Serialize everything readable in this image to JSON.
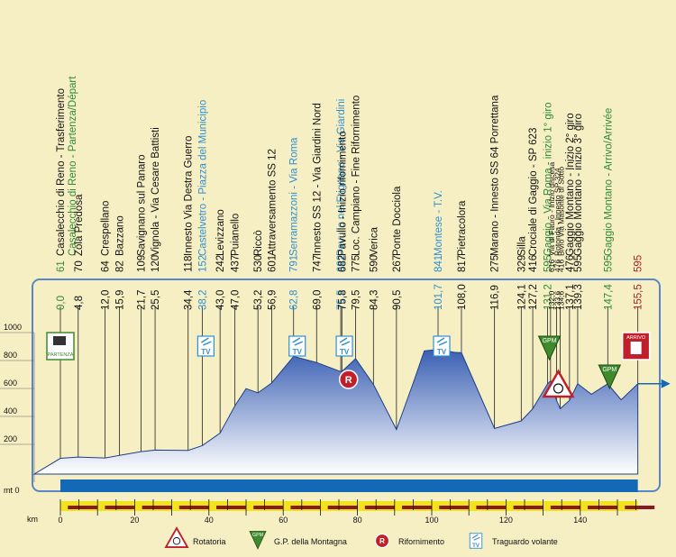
{
  "chart_data": {
    "type": "area",
    "title": "",
    "xlabel": "km",
    "ylabel": "",
    "xlim": [
      0,
      155.5
    ],
    "ylim": [
      0,
      1000
    ],
    "x_ticks": [
      0,
      20,
      40,
      60,
      80,
      100,
      120,
      140
    ],
    "y_ticks": [
      200,
      400,
      600,
      800,
      1000
    ],
    "y_base_label": "mt 0",
    "profile": [
      [
        0,
        61
      ],
      [
        4.8,
        70
      ],
      [
        12,
        64
      ],
      [
        15.9,
        82
      ],
      [
        21.7,
        109
      ],
      [
        25.5,
        120
      ],
      [
        34.4,
        118
      ],
      [
        38.2,
        152
      ],
      [
        43,
        242
      ],
      [
        47,
        437
      ],
      [
        50,
        560
      ],
      [
        53.2,
        530
      ],
      [
        56.9,
        601
      ],
      [
        62.8,
        791
      ],
      [
        69,
        747
      ],
      [
        75.5,
        682
      ],
      [
        75.8,
        682
      ],
      [
        79.5,
        775
      ],
      [
        84.3,
        590
      ],
      [
        90.5,
        267
      ],
      [
        95,
        600
      ],
      [
        98,
        830
      ],
      [
        101.7,
        841
      ],
      [
        106,
        820
      ],
      [
        108,
        817
      ],
      [
        116.9,
        275
      ],
      [
        124.1,
        329
      ],
      [
        127.2,
        416
      ],
      [
        131.2,
        595
      ],
      [
        132,
        616
      ],
      [
        133.6,
        476
      ],
      [
        134.6,
        416
      ],
      [
        137.1,
        476
      ],
      [
        139.3,
        595
      ],
      [
        143,
        520
      ],
      [
        147.4,
        595
      ],
      [
        151,
        480
      ],
      [
        155.5,
        595
      ]
    ],
    "places": [
      {
        "name": "Casalecchio di Reno - Trasferimento",
        "name2": "Casalecchio di Reno - Partenza/Départ",
        "km": "0,0",
        "alt": "61",
        "km_val": 0,
        "color": "green"
      },
      {
        "name": "Zola Predosa",
        "km": "4,8",
        "alt": "70",
        "km_val": 4.8
      },
      {
        "name": "Crespellano",
        "km": "12,0",
        "alt": "64",
        "km_val": 12
      },
      {
        "name": "Bazzano",
        "km": "15,9",
        "alt": "82",
        "km_val": 15.9
      },
      {
        "name": "Savignano sul Panaro",
        "km": "21,7",
        "alt": "109",
        "km_val": 21.7
      },
      {
        "name": "Vignola - Via Cesare Battisti",
        "km": "25,5",
        "alt": "120",
        "km_val": 25.5
      },
      {
        "name": "Innesto Via Destra Guerro",
        "km": "34,4",
        "alt": "118",
        "km_val": 34.4
      },
      {
        "name": "Castelvetro - Piazza del Municipio",
        "km": "38,2",
        "alt": "152",
        "km_val": 38.2,
        "color": "blue"
      },
      {
        "name": "Levizzano",
        "km": "43,0",
        "alt": "242",
        "km_val": 43
      },
      {
        "name": "Puianello",
        "km": "47,0",
        "alt": "437",
        "km_val": 47
      },
      {
        "name": "Riccò",
        "km": "53,2",
        "alt": "530",
        "km_val": 53.2
      },
      {
        "name": "Attraversamento SS 12",
        "km": "56,9",
        "alt": "601",
        "km_val": 56.9
      },
      {
        "name": "Serramazzoni - Via Roma",
        "km": "62,8",
        "alt": "791",
        "km_val": 62.8,
        "color": "blue"
      },
      {
        "name": "Innesto SS 12 - Via Giardini Nord",
        "km": "69,0",
        "alt": "747",
        "km_val": 69
      },
      {
        "name": "Pavullo nel Frignano - Via Giardini",
        "km": "75,5",
        "alt": "682",
        "km_val": 75.5,
        "color": "blue"
      },
      {
        "name": "Pavullo - Inizio rifornimento",
        "km": "75,8",
        "alt": "682",
        "km_val": 75.8
      },
      {
        "name": "Loc. Campiano - Fine Rifornimento",
        "km": "79,5",
        "alt": "775",
        "km_val": 79.5
      },
      {
        "name": "Verica",
        "km": "84,3",
        "alt": "590",
        "km_val": 84.3
      },
      {
        "name": "Ponte Docciola",
        "km": "90,5",
        "alt": "267",
        "km_val": 90.5
      },
      {
        "name": "Montese - T.V.",
        "km": "101,7",
        "alt": "841",
        "km_val": 101.7,
        "color": "blue"
      },
      {
        "name": "Pietracolora",
        "km": "108,0",
        "alt": "817",
        "km_val": 108
      },
      {
        "name": "Marano - Innesto SS 64 Porrettana",
        "km": "116,9",
        "alt": "275",
        "km_val": 116.9
      },
      {
        "name": "Silla",
        "km": "124,1",
        "alt": "329",
        "km_val": 124.1
      },
      {
        "name": "Crociale di Gaggio - SP 623",
        "km": "127,2",
        "alt": "416",
        "km_val": 127.2
      },
      {
        "name": "Gaggio - Via Roma - inizio 1° giro",
        "km": "131,2",
        "alt": "595",
        "km_val": 131.2,
        "color": "green"
      },
      {
        "name": "Via di Fauro - Inizio discesa",
        "km": "132,0",
        "alt": "616",
        "km_val": 132,
        "small": true
      },
      {
        "name": "Rotonda - Innesto SP 324",
        "km": "133,6",
        "alt": "476",
        "km_val": 133.6,
        "small": true
      },
      {
        "name": "Bivio Via Masonte di Sotto",
        "km": "134,6",
        "alt": "416",
        "km_val": 134.6,
        "small": true
      },
      {
        "name": "Gaggio Montano - Inizio 2° giro",
        "km": "137,1",
        "alt": "476",
        "km_val": 137.1
      },
      {
        "name": "Gaggio Montano - inizio 3° giro",
        "km": "139,3",
        "alt": "595",
        "km_val": 139.3
      },
      {
        "name": "Gaggio Montano - Arrivo/Arrivée",
        "km": "147,4",
        "alt": "595",
        "km_val": 147.4,
        "color": "green"
      },
      {
        "name": "",
        "km": "155,5",
        "alt": "595",
        "km_val": 155.5,
        "color": "red"
      }
    ],
    "markers": [
      {
        "type": "start",
        "km_val": 0,
        "label": "PARTENZA"
      },
      {
        "type": "tv",
        "km_val": 38.2,
        "label": "TV"
      },
      {
        "type": "tv",
        "km_val": 62.8,
        "label": "TV"
      },
      {
        "type": "tv",
        "km_val": 75.5,
        "label": "TV"
      },
      {
        "type": "refuel",
        "km_val": 77.6,
        "label": "R"
      },
      {
        "type": "tv",
        "km_val": 101.7,
        "label": "TV"
      },
      {
        "type": "gpm",
        "km_val": 131.2,
        "label": "GPM"
      },
      {
        "type": "roundabout",
        "km_val": 133.6,
        "label": ""
      },
      {
        "type": "gpm",
        "km_val": 147.4,
        "label": "GPM"
      },
      {
        "type": "finish",
        "km_val": 155.5,
        "label": "ARRIVO"
      }
    ],
    "legend": [
      {
        "icon": "roundabout",
        "text": "Rotatoria"
      },
      {
        "icon": "gpm",
        "text": "G.P. della Montagna"
      },
      {
        "icon": "refuel",
        "text": "Rifornimento"
      },
      {
        "icon": "tv",
        "text": "Traguardo volante"
      }
    ]
  },
  "colors": {
    "background": "#f7efc4",
    "profile_top": "#3a5fb3",
    "profile_bottom": "#ffffff",
    "base_bar": "#1469b6",
    "green": "#2e8a3a",
    "blue": "#2f8fd0",
    "red": "#a4202a"
  }
}
